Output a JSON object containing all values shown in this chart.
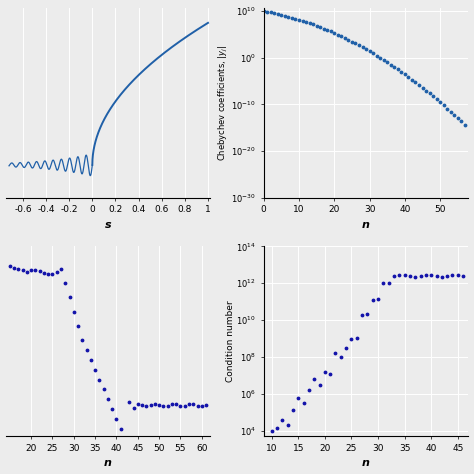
{
  "bg_color": "#ececec",
  "line_color": "#2060a8",
  "dot_color": "#1414aa",
  "top_left": {
    "xlabel": "s",
    "xlim": [
      -0.75,
      1.02
    ],
    "ylim": [
      -0.22,
      1.05
    ],
    "xticks": [
      -0.6,
      -0.4,
      -0.2,
      0.0,
      0.2,
      0.4,
      0.6,
      0.8,
      1.0
    ],
    "xticklabels": [
      "-0.6",
      "-0.4",
      "-0.2",
      "0",
      "0.2",
      "0.4",
      "0.6",
      "0.8",
      "1"
    ]
  },
  "top_right": {
    "xlabel": "n",
    "ylabel": "Chebychev coefficients, |y_j|",
    "xlim": [
      0,
      58
    ],
    "ylim": [
      1e-30,
      50000000000.0
    ],
    "xticks": [
      0,
      10,
      20,
      30,
      40,
      50
    ],
    "yticks_exp": [
      10,
      0,
      -10,
      -20,
      -30
    ]
  },
  "bot_left": {
    "xlabel": "n",
    "xlim": [
      14,
      62
    ],
    "ylim": [
      10000000.0,
      50000000000000.0
    ],
    "xticks": [
      20,
      25,
      30,
      35,
      40,
      45,
      50,
      55,
      60
    ]
  },
  "bot_right": {
    "xlabel": "n",
    "ylabel": "Condition number",
    "xlim": [
      8.5,
      47
    ],
    "ylim": [
      5000.0,
      50000000000000.0
    ],
    "xticks": [
      10,
      15,
      20,
      25,
      30,
      35,
      40,
      45
    ],
    "yticks_exp": [
      4,
      6,
      8,
      10,
      12,
      14
    ]
  }
}
